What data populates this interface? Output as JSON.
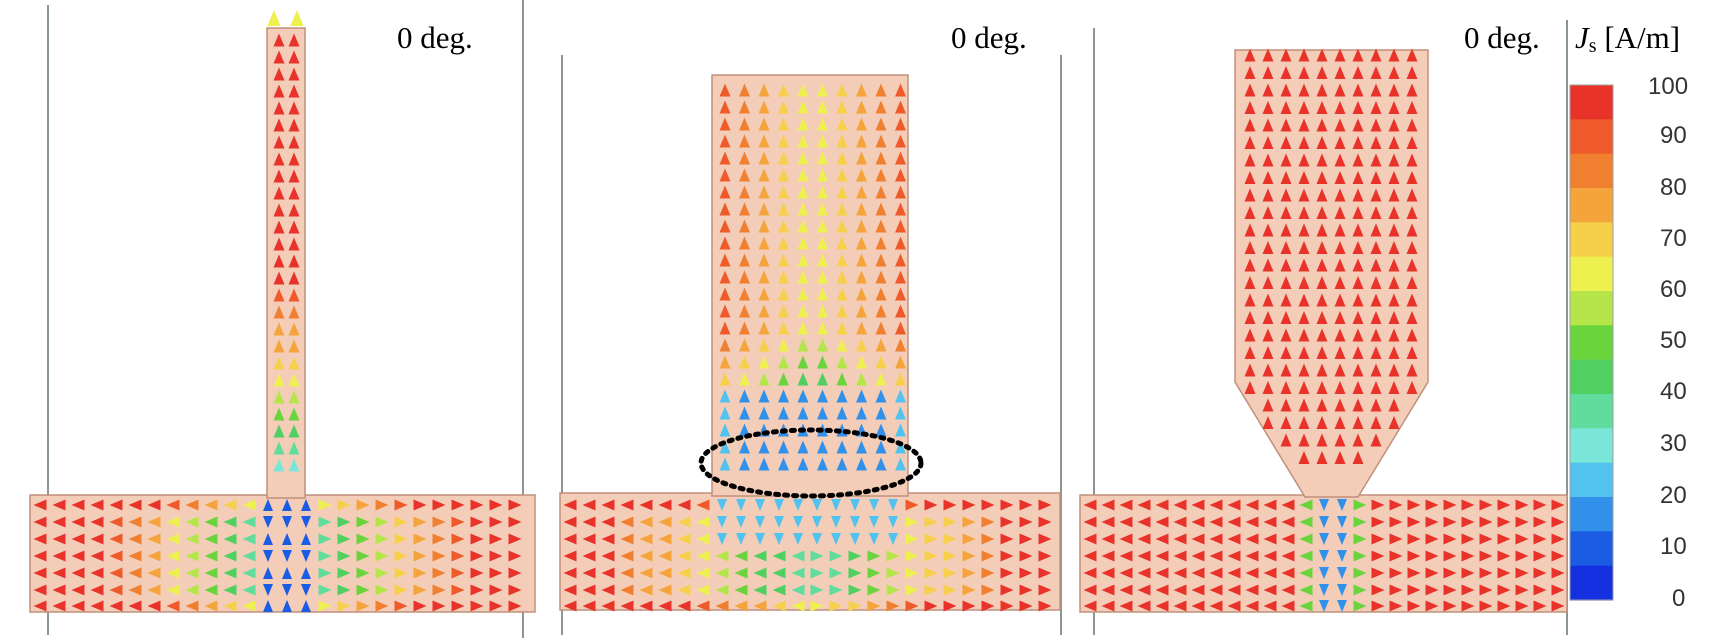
{
  "panels": [
    {
      "angle_label": "0 deg.",
      "geometry": "narrow stub"
    },
    {
      "angle_label": "0 deg.",
      "geometry": "wide stub"
    },
    {
      "angle_label": "0 deg.",
      "geometry": "tapered stub"
    }
  ],
  "colorbar": {
    "title_symbol": "J",
    "title_subscript": "s",
    "title_unit": "[A/m]",
    "ticks": [
      "100",
      "90",
      "80",
      "70",
      "60",
      "50",
      "40",
      "30",
      "20",
      "10",
      "0"
    ],
    "colors": [
      "#e8322a",
      "#ee5a2a",
      "#f08030",
      "#f4a43a",
      "#f6d04a",
      "#eef050",
      "#b4e64a",
      "#6ad43c",
      "#50d060",
      "#60dc9c",
      "#7ae6da",
      "#52c2ee",
      "#3090ea",
      "#1a5ce4",
      "#1430e0"
    ]
  },
  "colors": {
    "metal": "#f4cdb8",
    "outline": "#c0907c",
    "border_line": "#8a9690",
    "highlight_ellipse": "#000000"
  }
}
